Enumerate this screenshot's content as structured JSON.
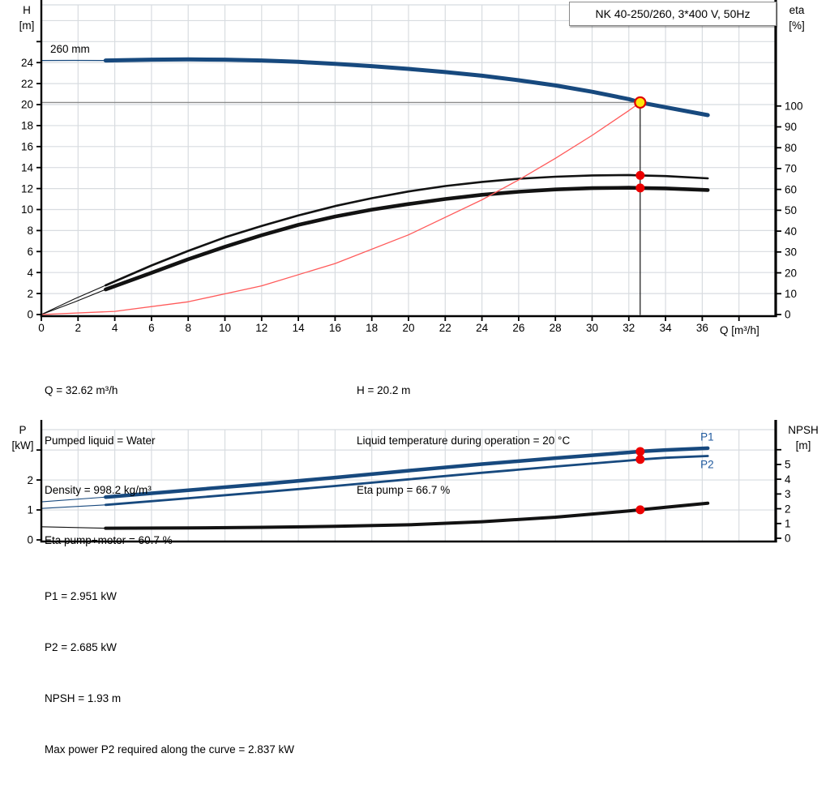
{
  "title": "NK 40-250/260, 3*400 V, 50Hz",
  "curve_label": "260 mm",
  "axis_corner_labels": {
    "h": [
      "H",
      "[m]"
    ],
    "eta": [
      "eta",
      "[%]"
    ],
    "p": [
      "P",
      "[kW]"
    ],
    "npsh": [
      "NPSH",
      "[m]"
    ],
    "q": "Q [m³/h]"
  },
  "info_top_left": {
    "lines": [
      "Q = 32.62 m³/h",
      "Pumped liquid = Water",
      "Density = 998.2 kg/m³",
      "Eta pump+motor = 60.7 %"
    ]
  },
  "info_top_right": {
    "lines": [
      "H = 20.2 m",
      "Liquid temperature during operation = 20 °C",
      "Eta pump = 66.7 %"
    ]
  },
  "info_bottom": {
    "lines": [
      "P1 = 2.951 kW",
      "P2 = 2.685 kW",
      "NPSH = 1.93 m",
      "Max power P2 required along the curve = 2.837 kW"
    ]
  },
  "colors": {
    "curve_blue": "#17497e",
    "label_blue": "#205a9e",
    "curve_black": "#121212",
    "curve_red": "#ff5a5a",
    "marker_red": "#ec0000",
    "marker_yellow": "#ffe60b",
    "marker_ring": "#e00000",
    "grid": "#d8dce0",
    "duty_gray": "#8c8c8c",
    "axis": "#000000"
  },
  "operating_point": {
    "q_m3h": 32.62,
    "h_m": 20.2,
    "eta_pump_pct": 66.7,
    "eta_pump_motor_pct": 60.7,
    "p1_kw": 2.951,
    "p2_kw": 2.685,
    "npsh_m": 1.93
  },
  "chart_data": [
    {
      "id": "qh",
      "type": "line",
      "title": "NK 40-250/260, 3*400 V, 50Hz",
      "x_axis": {
        "label": "Q [m³/h]",
        "min": 0,
        "max": 40.0,
        "ticks": [
          0,
          2,
          4,
          6,
          8,
          10,
          12,
          14,
          16,
          18,
          20,
          22,
          24,
          26,
          28,
          30,
          32,
          34,
          36
        ],
        "unlabeled_ticks": [
          38
        ],
        "grid": [
          2,
          4,
          6,
          8,
          10,
          12,
          14,
          16,
          18,
          20,
          22,
          24,
          26,
          28,
          30,
          32,
          34,
          36,
          38
        ]
      },
      "y_left": {
        "label": "H [m]",
        "min": 0,
        "max": 29.5,
        "ticks": [
          0,
          2,
          4,
          6,
          8,
          10,
          12,
          14,
          16,
          18,
          20,
          22,
          24
        ],
        "unlabeled_ticks": [
          26
        ],
        "grid": [
          2,
          4,
          6,
          8,
          10,
          12,
          14,
          16,
          18,
          20,
          22,
          24,
          26,
          28
        ]
      },
      "y_right": {
        "label": "eta [%]",
        "min": 0,
        "max": 148.5,
        "ticks": [
          0,
          10,
          20,
          30,
          40,
          50,
          60,
          70,
          80,
          90,
          100
        ],
        "unlabeled_ticks": []
      },
      "series": [
        {
          "name": "qh-curve-lead",
          "axis": "left",
          "color": "blue",
          "width": 1.2,
          "interactable": false,
          "points": [
            [
              0,
              24.2
            ],
            [
              1.8,
              24.21
            ],
            [
              3.5,
              24.2
            ]
          ]
        },
        {
          "name": "qh-curve-260mm",
          "axis": "left",
          "color": "blue",
          "width": 5,
          "interactable": true,
          "points": [
            [
              3.5,
              24.2
            ],
            [
              6,
              24.28
            ],
            [
              8,
              24.3
            ],
            [
              10,
              24.28
            ],
            [
              12,
              24.2
            ],
            [
              14,
              24.07
            ],
            [
              16,
              23.88
            ],
            [
              18,
              23.66
            ],
            [
              20,
              23.4
            ],
            [
              22,
              23.1
            ],
            [
              24,
              22.75
            ],
            [
              26,
              22.32
            ],
            [
              28,
              21.82
            ],
            [
              30,
              21.22
            ],
            [
              32,
              20.52
            ],
            [
              32.62,
              20.2
            ],
            [
              34,
              19.75
            ],
            [
              36.3,
              19.0
            ]
          ]
        },
        {
          "name": "eta-pump-curve-lead",
          "axis": "right",
          "color": "black",
          "width": 1.1,
          "interactable": false,
          "points": [
            [
              0,
              0
            ],
            [
              1.8,
              7.5
            ],
            [
              3.5,
              14
            ]
          ]
        },
        {
          "name": "eta-pump-curve",
          "axis": "right",
          "color": "black",
          "width": 2.6,
          "interactable": true,
          "points": [
            [
              3.5,
              14
            ],
            [
              6,
              23.5
            ],
            [
              8,
              30.5
            ],
            [
              10,
              37
            ],
            [
              12,
              42.5
            ],
            [
              14,
              47.5
            ],
            [
              16,
              52
            ],
            [
              18,
              55.8
            ],
            [
              20,
              59
            ],
            [
              22,
              61.6
            ],
            [
              24,
              63.6
            ],
            [
              26,
              65.1
            ],
            [
              28,
              66.1
            ],
            [
              30,
              66.7
            ],
            [
              32,
              66.9
            ],
            [
              32.62,
              66.7
            ],
            [
              34,
              66.4
            ],
            [
              36.3,
              65.3
            ]
          ]
        },
        {
          "name": "eta-pump-motor-curve-lead",
          "axis": "right",
          "color": "black",
          "width": 1.1,
          "interactable": false,
          "points": [
            [
              0,
              0
            ],
            [
              1.8,
              6
            ],
            [
              3.5,
              12
            ]
          ]
        },
        {
          "name": "eta-pump-motor-curve",
          "axis": "right",
          "color": "black",
          "width": 4.6,
          "interactable": true,
          "points": [
            [
              3.5,
              12
            ],
            [
              6,
              20
            ],
            [
              8,
              26.5
            ],
            [
              10,
              32.5
            ],
            [
              12,
              38
            ],
            [
              14,
              43
            ],
            [
              16,
              47
            ],
            [
              18,
              50.3
            ],
            [
              20,
              53
            ],
            [
              22,
              55.4
            ],
            [
              24,
              57.4
            ],
            [
              26,
              58.9
            ],
            [
              28,
              60
            ],
            [
              30,
              60.6
            ],
            [
              32,
              60.8
            ],
            [
              32.62,
              60.7
            ],
            [
              34,
              60.5
            ],
            [
              36.3,
              59.7
            ]
          ]
        },
        {
          "name": "system-curve",
          "axis": "left",
          "color": "red",
          "width": 1.3,
          "interactable": false,
          "points": [
            [
              0,
              0
            ],
            [
              4,
              0.3
            ],
            [
              8,
              1.21
            ],
            [
              12,
              2.73
            ],
            [
              16,
              4.86
            ],
            [
              20,
              7.59
            ],
            [
              24,
              10.93
            ],
            [
              26,
              12.83
            ],
            [
              28,
              14.88
            ],
            [
              30,
              17.07
            ],
            [
              32,
              19.43
            ],
            [
              32.62,
              20.2
            ]
          ]
        },
        {
          "name": "duty-h-line",
          "axis": "left",
          "color": "gray",
          "width": 1.4,
          "interactable": false,
          "points": [
            [
              0,
              20.2
            ],
            [
              32.62,
              20.2
            ]
          ]
        },
        {
          "name": "duty-v-line",
          "axis": "left",
          "color": "black",
          "width": 1.2,
          "interactable": false,
          "points": [
            [
              32.62,
              0
            ],
            [
              32.62,
              20.2
            ]
          ]
        }
      ],
      "markers": [
        {
          "name": "duty-point-marker",
          "x": 32.62,
          "y": 20.2,
          "axis": "left",
          "fill": "yellow",
          "ring": true,
          "r": 6.5,
          "interactable": true
        },
        {
          "name": "eta-pump-point",
          "x": 32.62,
          "y": 66.7,
          "axis": "right",
          "fill": "marker_red",
          "ring": false,
          "r": 5.5,
          "interactable": false
        },
        {
          "name": "eta-pump-motor-point",
          "x": 32.62,
          "y": 60.7,
          "axis": "right",
          "fill": "marker_red",
          "ring": false,
          "r": 5.5,
          "interactable": false
        }
      ],
      "series_labels": []
    },
    {
      "id": "power",
      "type": "line",
      "x_axis": {
        "label": "",
        "min": 0,
        "max": 40.0,
        "ticks": [],
        "unlabeled_ticks": [],
        "grid": [
          2,
          4,
          6,
          8,
          10,
          12,
          14,
          16,
          18,
          20,
          22,
          24,
          26,
          28,
          30,
          32,
          34,
          36,
          38
        ]
      },
      "y_left": {
        "label": "P [kW]",
        "min": 0,
        "max": 3.68,
        "ticks": [
          0,
          1,
          2
        ],
        "unlabeled_ticks": [
          3
        ],
        "grid": [
          1,
          2,
          3
        ]
      },
      "y_right": {
        "label": "NPSH [m]",
        "min": -0.11,
        "max": 7.36,
        "ticks": [
          0,
          1,
          2,
          3,
          4,
          5
        ],
        "unlabeled_ticks": [
          6
        ]
      },
      "series": [
        {
          "name": "p1-curve-lead",
          "axis": "left",
          "color": "blue",
          "width": 1.1,
          "interactable": false,
          "points": [
            [
              0,
              1.27
            ],
            [
              3.5,
              1.43
            ]
          ]
        },
        {
          "name": "p1-curve",
          "axis": "left",
          "color": "blue",
          "width": 4.5,
          "interactable": true,
          "points": [
            [
              3.5,
              1.43
            ],
            [
              8,
              1.66
            ],
            [
              12,
              1.86
            ],
            [
              16,
              2.08
            ],
            [
              20,
              2.31
            ],
            [
              24,
              2.53
            ],
            [
              28,
              2.73
            ],
            [
              32,
              2.92
            ],
            [
              32.62,
              2.951
            ],
            [
              34,
              3.0
            ],
            [
              36.3,
              3.06
            ]
          ]
        },
        {
          "name": "p2-curve-lead",
          "axis": "left",
          "color": "blue",
          "width": 1.1,
          "interactable": false,
          "points": [
            [
              0,
              1.05
            ],
            [
              3.5,
              1.17
            ]
          ]
        },
        {
          "name": "p2-curve",
          "axis": "left",
          "color": "blue",
          "width": 2.8,
          "interactable": true,
          "points": [
            [
              3.5,
              1.17
            ],
            [
              8,
              1.39
            ],
            [
              12,
              1.59
            ],
            [
              16,
              1.8
            ],
            [
              20,
              2.02
            ],
            [
              24,
              2.24
            ],
            [
              28,
              2.45
            ],
            [
              32,
              2.65
            ],
            [
              32.62,
              2.685
            ],
            [
              34,
              2.74
            ],
            [
              36.3,
              2.8
            ]
          ]
        },
        {
          "name": "npsh-curve-lead",
          "axis": "right",
          "color": "black",
          "width": 1.1,
          "interactable": false,
          "points": [
            [
              0,
              0.78
            ],
            [
              3.5,
              0.68
            ]
          ]
        },
        {
          "name": "npsh-curve",
          "axis": "right",
          "color": "black",
          "width": 4,
          "interactable": true,
          "points": [
            [
              3.5,
              0.68
            ],
            [
              8,
              0.7
            ],
            [
              12,
              0.74
            ],
            [
              16,
              0.81
            ],
            [
              20,
              0.91
            ],
            [
              24,
              1.12
            ],
            [
              28,
              1.43
            ],
            [
              32,
              1.85
            ],
            [
              32.62,
              1.93
            ],
            [
              34,
              2.1
            ],
            [
              36.3,
              2.38
            ]
          ]
        }
      ],
      "markers": [
        {
          "name": "p1-point",
          "x": 32.62,
          "y": 2.951,
          "axis": "left",
          "fill": "marker_red",
          "ring": false,
          "r": 5.5,
          "interactable": false
        },
        {
          "name": "p2-point",
          "x": 32.62,
          "y": 2.685,
          "axis": "left",
          "fill": "marker_red",
          "ring": false,
          "r": 5.5,
          "interactable": false
        },
        {
          "name": "npsh-point",
          "x": 32.62,
          "y": 1.93,
          "axis": "right",
          "fill": "marker_red",
          "ring": false,
          "r": 5.5,
          "interactable": false
        }
      ],
      "series_labels": [
        {
          "text": "P1",
          "x": 35.9,
          "y": 3.32,
          "axis": "left"
        },
        {
          "text": "P2",
          "x": 35.9,
          "y": 2.4,
          "axis": "left"
        }
      ]
    }
  ]
}
